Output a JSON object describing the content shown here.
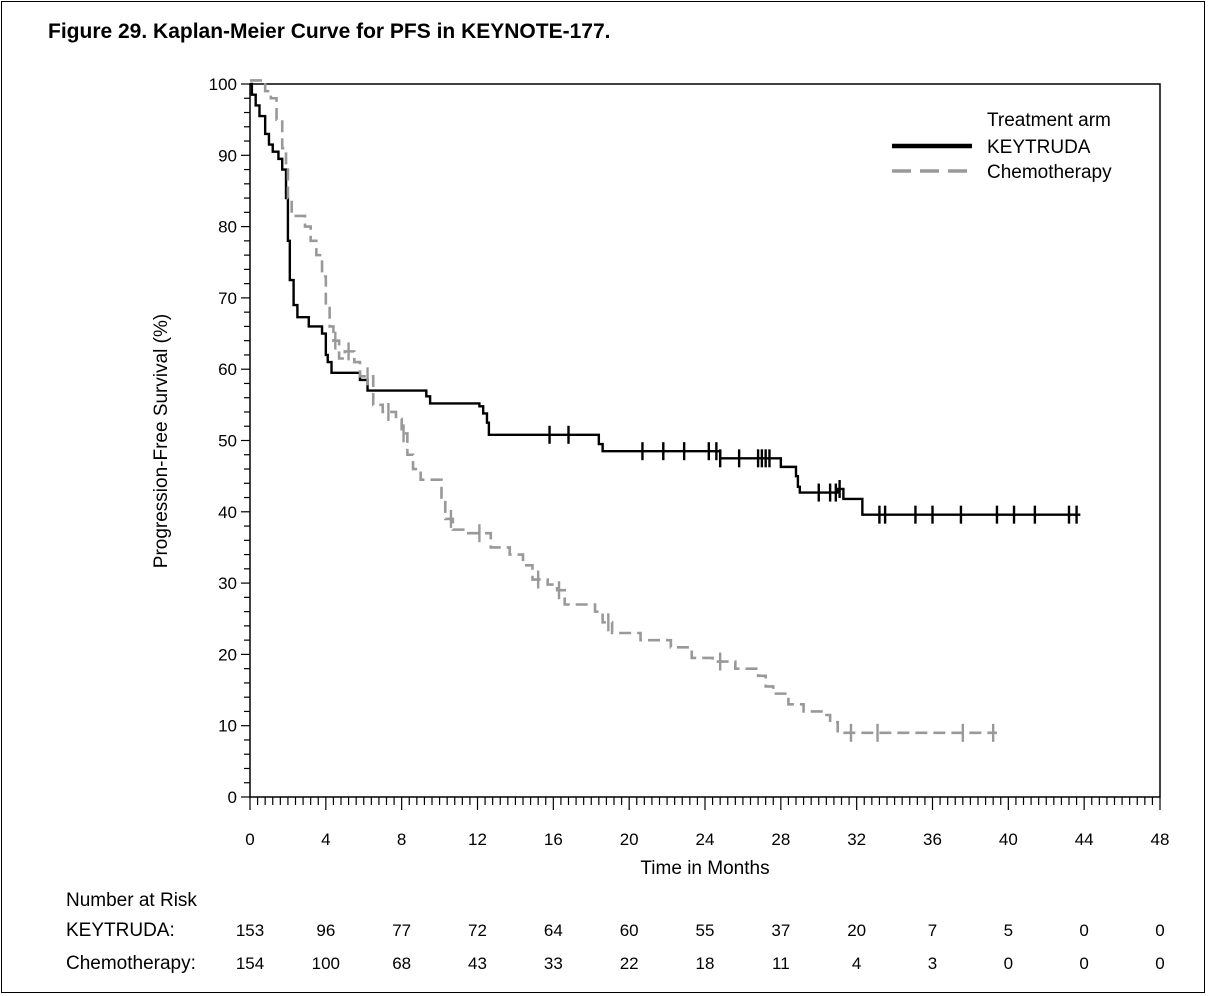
{
  "title": "Figure 29. Kaplan-Meier Curve for PFS in KEYNOTE-177.",
  "chart_data": {
    "type": "line",
    "subtype": "kaplan-meier",
    "title": "Figure 29. Kaplan-Meier Curve for PFS in KEYNOTE-177.",
    "xlabel": "Time in Months",
    "ylabel": "Progression-Free Survival (%)",
    "xlim": [
      0,
      48
    ],
    "ylim": [
      0,
      100
    ],
    "xticks": [
      0,
      4,
      8,
      12,
      16,
      20,
      24,
      28,
      32,
      36,
      40,
      44,
      48
    ],
    "yticks": [
      0,
      10,
      20,
      30,
      40,
      50,
      60,
      70,
      80,
      90,
      100
    ],
    "legend": {
      "title": "Treatment arm",
      "position": "top-right"
    },
    "series": [
      {
        "name": "KEYTRUDA",
        "color": "#000000",
        "style": "solid",
        "steps": [
          [
            0,
            100
          ],
          [
            0.1,
            98.5
          ],
          [
            0.3,
            97
          ],
          [
            0.5,
            95.5
          ],
          [
            0.8,
            93
          ],
          [
            1.0,
            91.5
          ],
          [
            1.2,
            90.5
          ],
          [
            1.5,
            89.5
          ],
          [
            1.7,
            88
          ],
          [
            1.9,
            84
          ],
          [
            2.0,
            78
          ],
          [
            2.1,
            72.5
          ],
          [
            2.3,
            69
          ],
          [
            2.5,
            67.3
          ],
          [
            3.1,
            66
          ],
          [
            3.8,
            65
          ],
          [
            4.0,
            62
          ],
          [
            4.1,
            61
          ],
          [
            4.3,
            59.5
          ],
          [
            5.8,
            58.5
          ],
          [
            6.2,
            57
          ],
          [
            9.3,
            56.2
          ],
          [
            9.5,
            55.2
          ],
          [
            12.1,
            54.8
          ],
          [
            12.3,
            53.8
          ],
          [
            12.5,
            52.5
          ],
          [
            12.6,
            50.8
          ],
          [
            18.4,
            49.5
          ],
          [
            18.6,
            48.5
          ],
          [
            24.8,
            47.5
          ],
          [
            28.0,
            46.3
          ],
          [
            28.8,
            45
          ],
          [
            28.9,
            43.5
          ],
          [
            29.0,
            42.7
          ],
          [
            31.0,
            43.2
          ],
          [
            31.3,
            41.8
          ],
          [
            32.3,
            39.6
          ],
          [
            43.8,
            39.6
          ]
        ],
        "censor": [
          15.8,
          16.8,
          20.7,
          21.8,
          22.9,
          24.2,
          24.6,
          24.8,
          25.8,
          26.8,
          27.0,
          27.2,
          27.4,
          30.0,
          30.6,
          30.9,
          31.1,
          33.2,
          33.5,
          35.1,
          36.0,
          37.5,
          39.4,
          40.3,
          41.4,
          43.2,
          43.6
        ]
      },
      {
        "name": "Chemotherapy",
        "color": "#999999",
        "style": "dashed",
        "steps": [
          [
            0,
            100.5
          ],
          [
            0.8,
            99
          ],
          [
            1.1,
            98
          ],
          [
            1.4,
            95
          ],
          [
            1.7,
            91
          ],
          [
            1.9,
            88
          ],
          [
            2.0,
            84
          ],
          [
            2.2,
            81.5
          ],
          [
            2.9,
            80
          ],
          [
            3.2,
            78
          ],
          [
            3.5,
            76
          ],
          [
            3.8,
            73
          ],
          [
            4.0,
            69
          ],
          [
            4.2,
            66
          ],
          [
            4.4,
            64
          ],
          [
            4.7,
            61.5
          ],
          [
            5.0,
            62.5
          ],
          [
            5.5,
            61
          ],
          [
            5.8,
            59
          ],
          [
            6.5,
            55
          ],
          [
            7.0,
            54
          ],
          [
            7.7,
            53
          ],
          [
            8.0,
            51
          ],
          [
            8.3,
            48
          ],
          [
            8.6,
            46
          ],
          [
            9.0,
            44.5
          ],
          [
            10.1,
            42
          ],
          [
            10.3,
            39
          ],
          [
            10.7,
            37.5
          ],
          [
            11.4,
            37
          ],
          [
            12.7,
            35
          ],
          [
            13.7,
            34
          ],
          [
            14.4,
            32.5
          ],
          [
            14.9,
            30.5
          ],
          [
            15.7,
            29.8
          ],
          [
            16.2,
            29
          ],
          [
            16.6,
            27
          ],
          [
            18.2,
            26
          ],
          [
            18.6,
            24.5
          ],
          [
            19.1,
            23
          ],
          [
            20.6,
            22
          ],
          [
            22.2,
            21
          ],
          [
            23.3,
            19.5
          ],
          [
            24.4,
            19
          ],
          [
            25.6,
            18
          ],
          [
            26.8,
            17
          ],
          [
            27.2,
            15.5
          ],
          [
            27.6,
            14.5
          ],
          [
            28.4,
            13
          ],
          [
            29.2,
            12
          ],
          [
            30.3,
            11.5
          ],
          [
            30.6,
            10.5
          ],
          [
            31.0,
            9
          ],
          [
            39.4,
            9
          ]
        ],
        "censor": [
          4.5,
          5.2,
          6.2,
          7.3,
          8.1,
          10.6,
          12.1,
          15.2,
          16.3,
          18.9,
          24.8,
          31.7,
          33.1,
          37.6,
          39.2
        ]
      }
    ],
    "risk_table": {
      "label": "Number at Risk",
      "times": [
        0,
        4,
        8,
        12,
        16,
        20,
        24,
        28,
        32,
        36,
        40,
        44,
        48
      ],
      "rows": [
        {
          "label": "KEYTRUDA:",
          "values": [
            153,
            96,
            77,
            72,
            64,
            60,
            55,
            37,
            20,
            7,
            5,
            0,
            0
          ]
        },
        {
          "label": "Chemotherapy:",
          "values": [
            154,
            100,
            68,
            43,
            33,
            22,
            18,
            11,
            4,
            3,
            0,
            0,
            0
          ]
        }
      ]
    }
  }
}
